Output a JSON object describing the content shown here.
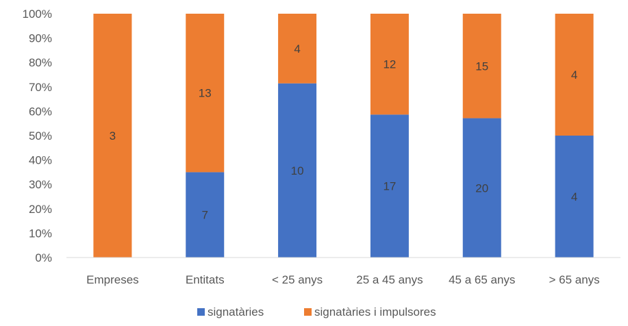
{
  "chart_data": {
    "type": "bar",
    "stacked": "percent",
    "categories": [
      "Empreses",
      "Entitats",
      "< 25 anys",
      "25 a 45 anys",
      "45 a 65 anys",
      "> 65 anys"
    ],
    "series": [
      {
        "name": "signatàries",
        "values": [
          0,
          7,
          10,
          17,
          20,
          4
        ],
        "color": "#4472C4"
      },
      {
        "name": "signatàries i impulsores",
        "values": [
          3,
          13,
          4,
          12,
          15,
          4
        ],
        "color": "#ED7D31"
      }
    ],
    "ylim": [
      0,
      100
    ],
    "yticks": [
      "0%",
      "10%",
      "20%",
      "30%",
      "40%",
      "50%",
      "60%",
      "70%",
      "80%",
      "90%",
      "100%"
    ],
    "grid": false,
    "legend_position": "bottom",
    "title": "",
    "xlabel": "",
    "ylabel": ""
  }
}
